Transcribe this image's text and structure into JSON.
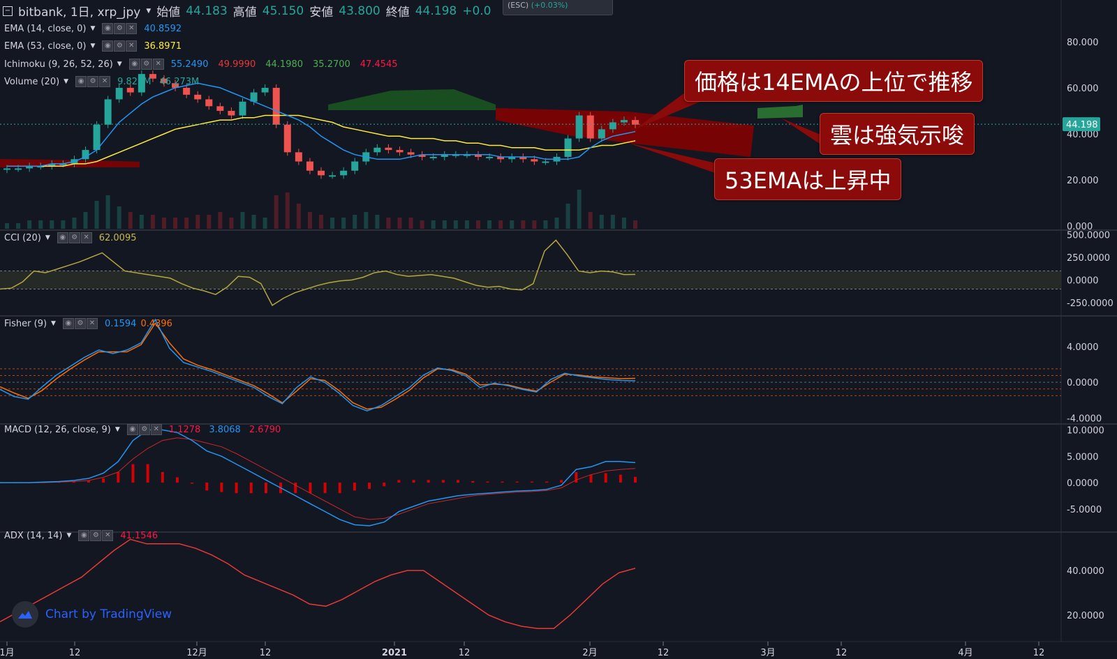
{
  "header": {
    "symbol": "bitbank, 1日, xrp_jpy",
    "ohlc": [
      {
        "label": "始値",
        "value": "44.183"
      },
      {
        "label": "高値",
        "value": "45.150"
      },
      {
        "label": "安値",
        "value": "43.800"
      },
      {
        "label": "終値",
        "value": "44.198"
      }
    ],
    "change": "+0.0",
    "change_pct": "(+0.03%)",
    "esc": "(ESC)"
  },
  "indicators": {
    "ema14": {
      "label": "EMA (14, close, 0)",
      "value": "40.8592",
      "color": "#2196f3"
    },
    "ema53": {
      "label": "EMA (53, close, 0)",
      "value": "36.8971",
      "color": "#ffeb3b"
    },
    "ichimoku": {
      "label": "Ichimoku (9, 26, 52, 26)",
      "values": [
        "55.2490",
        "49.9990",
        "44.1980",
        "35.2700",
        "47.4545"
      ],
      "colors": [
        "#2196f3",
        "#e53935",
        "#4caf50",
        "#4caf50",
        "#ff1744"
      ]
    },
    "volume": {
      "label": "Volume (20)",
      "values": [
        "9.822M",
        "46.273M"
      ],
      "colors": [
        "#26a69a",
        "#26a69a"
      ]
    },
    "cci": {
      "label": "CCI (20)",
      "value": "62.0095",
      "color": "#c9b94d"
    },
    "fisher": {
      "label": "Fisher (9)",
      "values": [
        "0.1594",
        "0.4396"
      ],
      "colors": [
        "#2196f3",
        "#ff6d00"
      ]
    },
    "macd": {
      "label": "MACD (12, 26, close, 9)",
      "values": [
        "1.1278",
        "3.8068",
        "2.6790"
      ],
      "colors": [
        "#ff1744",
        "#2196f3",
        "#ff1744"
      ]
    },
    "adx": {
      "label": "ADX (14, 14)",
      "value": "41.1546",
      "color": "#ff1744"
    }
  },
  "callouts": [
    "価格は14EMAの上位で推移",
    "雲は強気示唆",
    "53EMAは上昇中"
  ],
  "price_badge": "44.198",
  "branding": "Chart by TradingView",
  "icons": {
    "logo": "tradingview-cloud-icon",
    "controls": [
      "eye-icon",
      "gear-icon",
      "close-icon"
    ]
  },
  "chart_data": [
    {
      "type": "candlestick",
      "pane": "price",
      "y_ticks": [
        "80.000",
        "60.000",
        "40.000",
        "20.000",
        "0.000"
      ],
      "ylim": [
        0,
        83
      ],
      "ema14": [
        26,
        26,
        26,
        26,
        27,
        27,
        28,
        30,
        33,
        39,
        45,
        49,
        53,
        56,
        58,
        60,
        61,
        62,
        61,
        60,
        58,
        56,
        54,
        52,
        50,
        48,
        46,
        43,
        39,
        36,
        33,
        31,
        30,
        29,
        29,
        29,
        30,
        31,
        31,
        31,
        31,
        31,
        31,
        31,
        30,
        30,
        30,
        30,
        29,
        29,
        29,
        30,
        34,
        37,
        39,
        40,
        41
      ],
      "ema53": [
        26,
        26,
        26,
        26,
        26,
        26,
        27,
        27,
        28,
        30,
        32,
        34,
        36,
        38,
        40,
        42,
        43,
        44,
        45,
        46,
        46,
        47,
        47,
        48,
        48,
        48,
        48,
        47,
        46,
        45,
        43,
        42,
        41,
        40,
        39,
        39,
        38,
        38,
        38,
        37,
        37,
        36,
        36,
        35,
        35,
        34,
        34,
        34,
        33,
        33,
        33,
        33,
        34,
        35,
        35,
        36,
        37
      ],
      "close": [
        25,
        25,
        26,
        26,
        27,
        27,
        29,
        33,
        44,
        55,
        60,
        58,
        66,
        64,
        62,
        60,
        57,
        55,
        52,
        50,
        48,
        54,
        58,
        60,
        44,
        32,
        28,
        24,
        22,
        22,
        24,
        28,
        32,
        34,
        33,
        32,
        31,
        30,
        30,
        31,
        31,
        31,
        30,
        30,
        29,
        30,
        29,
        28,
        28,
        30,
        38,
        48,
        38,
        42,
        45,
        46,
        44
      ],
      "volume": [
        2,
        2,
        3,
        3,
        3,
        3,
        4,
        6,
        10,
        12,
        8,
        6,
        5,
        5,
        4,
        4,
        4,
        5,
        5,
        6,
        4,
        6,
        5,
        4,
        12,
        13,
        9,
        6,
        5,
        4,
        4,
        5,
        6,
        5,
        4,
        4,
        4,
        3,
        3,
        3,
        3,
        3,
        3,
        3,
        3,
        3,
        3,
        3,
        3,
        4,
        9,
        14,
        6,
        5,
        5,
        4,
        3
      ]
    },
    {
      "type": "line",
      "pane": "cci",
      "y_ticks": [
        "500.0000",
        "250.0000",
        "0.0000",
        "-250.0000"
      ],
      "ylim": [
        -350,
        520
      ],
      "band": [
        100,
        -100
      ],
      "values": [
        -100,
        -90,
        -20,
        100,
        80,
        120,
        160,
        200,
        250,
        300,
        200,
        100,
        80,
        60,
        40,
        20,
        -40,
        -90,
        -120,
        -160,
        -80,
        40,
        30,
        -40,
        -280,
        -200,
        -140,
        -100,
        -60,
        -30,
        -10,
        0,
        30,
        80,
        100,
        60,
        40,
        50,
        60,
        40,
        20,
        -20,
        -60,
        -80,
        -70,
        -100,
        -110,
        -40,
        320,
        440,
        280,
        100,
        80,
        100,
        90,
        60,
        62
      ]
    },
    {
      "type": "line",
      "pane": "fisher",
      "y_ticks": [
        "4.0000",
        "0.0000",
        "-4.0000"
      ],
      "ylim": [
        -4.2,
        7.1
      ],
      "levels": [
        1.5,
        0.75,
        0,
        -0.75,
        -1.5
      ],
      "series": [
        {
          "values": [
            -0.8,
            -1.6,
            -1.9,
            -0.5,
            0.8,
            1.8,
            2.8,
            3.6,
            3.2,
            3.6,
            4.4,
            7.0,
            3.8,
            2.2,
            1.7,
            1.2,
            0.6,
            0.0,
            -0.6,
            -1.6,
            -2.4,
            -0.6,
            0.6,
            0.0,
            -1.2,
            -2.6,
            -3.2,
            -2.6,
            -1.6,
            -0.6,
            0.8,
            1.6,
            1.3,
            0.7,
            -0.6,
            -0.1,
            -0.4,
            -0.8,
            -1.1,
            0.3,
            1.0,
            0.7,
            0.5,
            0.3,
            0.2,
            0.16
          ]
        },
        {
          "values": [
            -0.5,
            -1.2,
            -1.8,
            -0.9,
            0.4,
            1.5,
            2.5,
            3.4,
            3.4,
            3.4,
            4.2,
            6.6,
            4.4,
            2.6,
            1.9,
            1.4,
            0.8,
            0.2,
            -0.4,
            -1.3,
            -2.3,
            -1.0,
            0.4,
            0.2,
            -0.9,
            -2.3,
            -3.0,
            -2.8,
            -1.9,
            -0.9,
            0.5,
            1.5,
            1.4,
            0.9,
            -0.3,
            -0.2,
            -0.3,
            -0.7,
            -1.0,
            0.0,
            0.9,
            0.8,
            0.6,
            0.5,
            0.4,
            0.44
          ]
        }
      ]
    },
    {
      "type": "line+bar",
      "pane": "macd",
      "y_ticks": [
        "10.0000",
        "5.0000",
        "0.0000",
        "-5.0000"
      ],
      "ylim": [
        -8.6,
        10.6
      ],
      "macd": [
        0,
        0,
        0,
        0.1,
        0.2,
        0.4,
        0.8,
        1.8,
        4,
        8,
        10,
        10,
        9.5,
        8,
        6,
        5,
        3.5,
        2,
        0.5,
        -1,
        -2.5,
        -4,
        -5.5,
        -7,
        -8,
        -8.2,
        -7.5,
        -5.5,
        -4.5,
        -3.5,
        -3,
        -2.5,
        -2.2,
        -2,
        -1.8,
        -1.6,
        -1.5,
        -1.3,
        -0.5,
        2.5,
        3,
        4,
        4,
        3.8
      ],
      "signal": [
        0,
        0,
        0,
        0,
        0.1,
        0.2,
        0.4,
        1,
        2,
        4.5,
        6.5,
        8,
        8.5,
        8.2,
        7.5,
        6.8,
        5.5,
        4,
        2.5,
        1,
        -0.5,
        -2,
        -3.5,
        -5,
        -6.5,
        -7,
        -6.8,
        -6,
        -5,
        -4,
        -3.5,
        -3,
        -2.5,
        -2.2,
        -2,
        -1.8,
        -1.7,
        -1.5,
        -1,
        0.5,
        1.5,
        2.2,
        2.5,
        2.7
      ],
      "hist": [
        0,
        0,
        0,
        0.1,
        0.1,
        0.2,
        0.4,
        0.8,
        2,
        3.5,
        3.5,
        2,
        1,
        -0.2,
        -1.5,
        -1.8,
        -2,
        -2,
        -2,
        -2,
        -2,
        -2,
        -2,
        -2,
        -1.5,
        -1.2,
        -0.7,
        0.5,
        0.5,
        0.5,
        0.5,
        0.5,
        0.3,
        0.2,
        0.2,
        0.2,
        0.2,
        0.2,
        0.5,
        2,
        1.5,
        1.8,
        1.5,
        1.1
      ]
    },
    {
      "type": "line",
      "pane": "adx",
      "y_ticks": [
        "40.0000",
        "20.0000"
      ],
      "ylim": [
        10,
        56
      ],
      "values": [
        17,
        21,
        25,
        29,
        33,
        37,
        43,
        49,
        54,
        52,
        52,
        52,
        50,
        47,
        43,
        38,
        35,
        32,
        29,
        25,
        24,
        27,
        31,
        35,
        38,
        40,
        40,
        35,
        30,
        25,
        20,
        17,
        15,
        14,
        14,
        20,
        27,
        34,
        39,
        41
      ]
    }
  ],
  "x_axis": [
    "1月",
    "12",
    "12月",
    "12",
    "2021",
    "12",
    "2月",
    "12",
    "3月",
    "12",
    "4月",
    "12"
  ]
}
